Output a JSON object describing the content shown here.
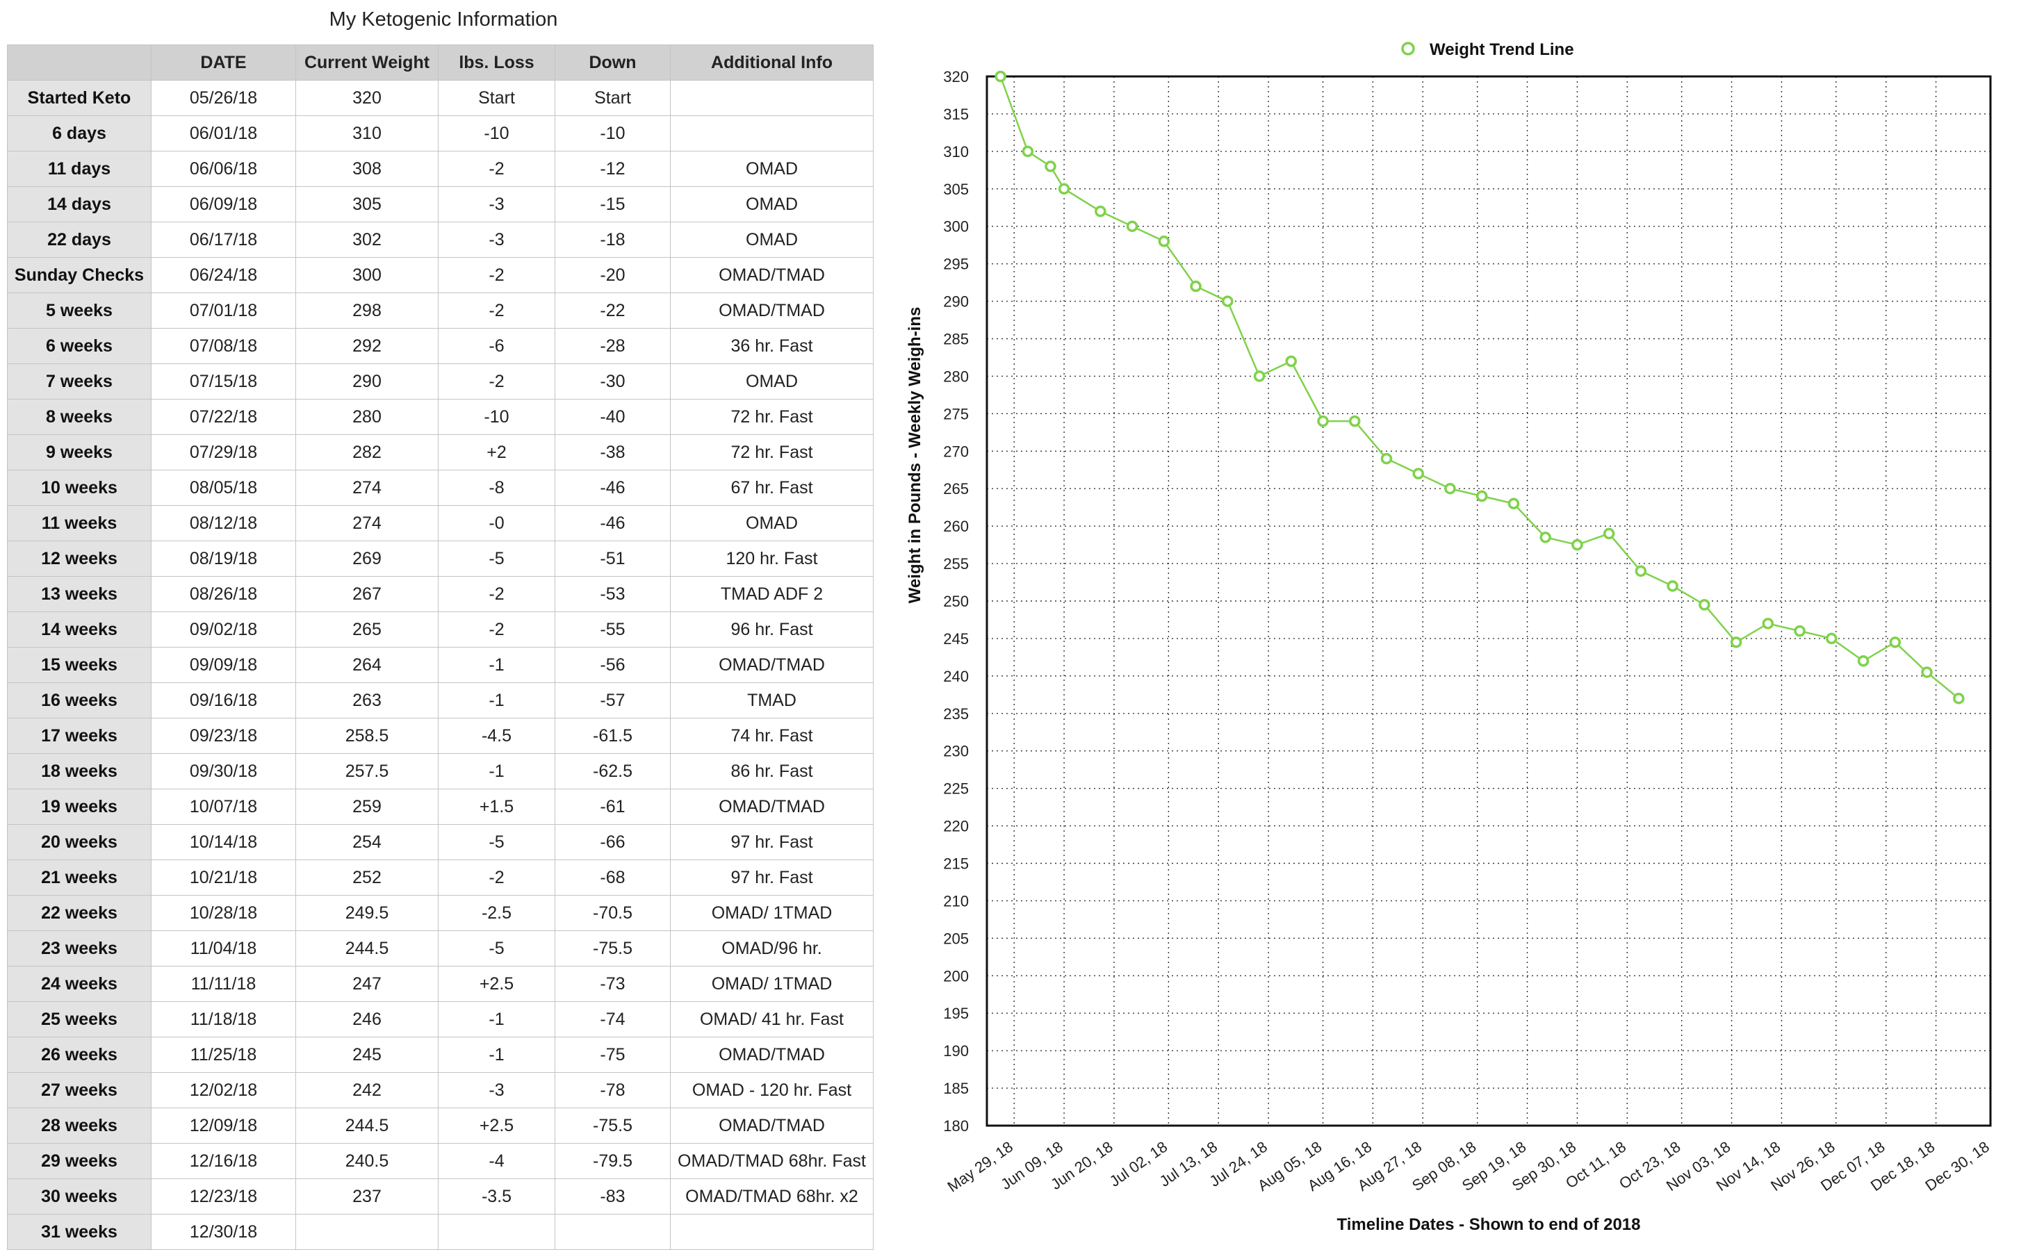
{
  "page": {
    "title": "My Ketogenic Information"
  },
  "table": {
    "headers": [
      "",
      "DATE",
      "Current Weight",
      "lbs. Loss",
      "Down",
      "Additional Info"
    ],
    "rows": [
      {
        "label": "Started Keto",
        "date": "05/26/18",
        "weight": "320",
        "loss": "Start",
        "down": "Start",
        "info": ""
      },
      {
        "label": "6 days",
        "date": "06/01/18",
        "weight": "310",
        "loss": "-10",
        "down": "-10",
        "info": ""
      },
      {
        "label": "11 days",
        "date": "06/06/18",
        "weight": "308",
        "loss": "-2",
        "down": "-12",
        "info": "OMAD"
      },
      {
        "label": "14 days",
        "date": "06/09/18",
        "weight": "305",
        "loss": "-3",
        "down": "-15",
        "info": "OMAD"
      },
      {
        "label": "22 days",
        "date": "06/17/18",
        "weight": "302",
        "loss": "-3",
        "down": "-18",
        "info": "OMAD"
      },
      {
        "label": "Sunday Checks",
        "date": "06/24/18",
        "weight": "300",
        "loss": "-2",
        "down": "-20",
        "info": "OMAD/TMAD"
      },
      {
        "label": "5 weeks",
        "date": "07/01/18",
        "weight": "298",
        "loss": "-2",
        "down": "-22",
        "info": "OMAD/TMAD"
      },
      {
        "label": "6 weeks",
        "date": "07/08/18",
        "weight": "292",
        "loss": "-6",
        "down": "-28",
        "info": "36 hr. Fast"
      },
      {
        "label": "7 weeks",
        "date": "07/15/18",
        "weight": "290",
        "loss": "-2",
        "down": "-30",
        "info": "OMAD"
      },
      {
        "label": "8 weeks",
        "date": "07/22/18",
        "weight": "280",
        "loss": "-10",
        "down": "-40",
        "info": "72 hr. Fast"
      },
      {
        "label": "9 weeks",
        "date": "07/29/18",
        "weight": "282",
        "loss": "+2",
        "down": "-38",
        "info": "72 hr. Fast"
      },
      {
        "label": "10 weeks",
        "date": "08/05/18",
        "weight": "274",
        "loss": "-8",
        "down": "-46",
        "info": "67 hr. Fast"
      },
      {
        "label": "11 weeks",
        "date": "08/12/18",
        "weight": "274",
        "loss": "-0",
        "down": "-46",
        "info": "OMAD"
      },
      {
        "label": "12 weeks",
        "date": "08/19/18",
        "weight": "269",
        "loss": "-5",
        "down": "-51",
        "info": "120 hr. Fast"
      },
      {
        "label": "13 weeks",
        "date": "08/26/18",
        "weight": "267",
        "loss": "-2",
        "down": "-53",
        "info": "TMAD ADF 2"
      },
      {
        "label": "14 weeks",
        "date": "09/02/18",
        "weight": "265",
        "loss": "-2",
        "down": "-55",
        "info": "96 hr. Fast"
      },
      {
        "label": "15 weeks",
        "date": "09/09/18",
        "weight": "264",
        "loss": "-1",
        "down": "-56",
        "info": "OMAD/TMAD"
      },
      {
        "label": "16 weeks",
        "date": "09/16/18",
        "weight": "263",
        "loss": "-1",
        "down": "-57",
        "info": "TMAD"
      },
      {
        "label": "17 weeks",
        "date": "09/23/18",
        "weight": "258.5",
        "loss": "-4.5",
        "down": "-61.5",
        "info": "74 hr. Fast"
      },
      {
        "label": "18 weeks",
        "date": "09/30/18",
        "weight": "257.5",
        "loss": "-1",
        "down": "-62.5",
        "info": "86 hr. Fast"
      },
      {
        "label": "19 weeks",
        "date": "10/07/18",
        "weight": "259",
        "loss": "+1.5",
        "down": "-61",
        "info": "OMAD/TMAD"
      },
      {
        "label": "20 weeks",
        "date": "10/14/18",
        "weight": "254",
        "loss": "-5",
        "down": "-66",
        "info": "97 hr. Fast"
      },
      {
        "label": "21 weeks",
        "date": "10/21/18",
        "weight": "252",
        "loss": "-2",
        "down": "-68",
        "info": "97 hr. Fast"
      },
      {
        "label": "22 weeks",
        "date": "10/28/18",
        "weight": "249.5",
        "loss": "-2.5",
        "down": "-70.5",
        "info": "OMAD/ 1TMAD"
      },
      {
        "label": "23 weeks",
        "date": "11/04/18",
        "weight": "244.5",
        "loss": "-5",
        "down": "-75.5",
        "info": "OMAD/96 hr."
      },
      {
        "label": "24 weeks",
        "date": "11/11/18",
        "weight": "247",
        "loss": "+2.5",
        "down": "-73",
        "info": "OMAD/ 1TMAD"
      },
      {
        "label": "25 weeks",
        "date": "11/18/18",
        "weight": "246",
        "loss": "-1",
        "down": "-74",
        "info": "OMAD/ 41 hr. Fast"
      },
      {
        "label": "26 weeks",
        "date": "11/25/18",
        "weight": "245",
        "loss": "-1",
        "down": "-75",
        "info": "OMAD/TMAD"
      },
      {
        "label": "27 weeks",
        "date": "12/02/18",
        "weight": "242",
        "loss": "-3",
        "down": "-78",
        "info": "OMAD - 120 hr. Fast"
      },
      {
        "label": "28 weeks",
        "date": "12/09/18",
        "weight": "244.5",
        "loss": "+2.5",
        "down": "-75.5",
        "info": "OMAD/TMAD"
      },
      {
        "label": "29 weeks",
        "date": "12/16/18",
        "weight": "240.5",
        "loss": "-4",
        "down": "-79.5",
        "info": "OMAD/TMAD 68hr. Fast"
      },
      {
        "label": "30 weeks",
        "date": "12/23/18",
        "weight": "237",
        "loss": "-3.5",
        "down": "-83",
        "info": "OMAD/TMAD 68hr. x2"
      },
      {
        "label": "31 weeks",
        "date": "12/30/18",
        "weight": "",
        "loss": "",
        "down": "",
        "info": ""
      }
    ]
  },
  "chart_data": {
    "type": "line",
    "legend": "Weight Trend Line",
    "legend_placement": "top-center",
    "xlabel": "Timeline Dates - Shown to end of 2018",
    "ylabel": "Weight in Pounds - Weekly Weigh-ins",
    "ylim": [
      180,
      320
    ],
    "yticks": [
      320,
      315,
      310,
      305,
      300,
      295,
      290,
      285,
      280,
      275,
      270,
      265,
      260,
      255,
      250,
      245,
      240,
      235,
      230,
      225,
      220,
      215,
      210,
      205,
      200,
      195,
      190,
      185,
      180
    ],
    "xlim": [
      "2018-05-23",
      "2018-12-30"
    ],
    "xticks": [
      {
        "date": "2018-05-29",
        "label": "May 29, 18"
      },
      {
        "date": "2018-06-09",
        "label": "Jun 09, 18"
      },
      {
        "date": "2018-06-20",
        "label": "Jun 20, 18"
      },
      {
        "date": "2018-07-02",
        "label": "Jul 02, 18"
      },
      {
        "date": "2018-07-13",
        "label": "Jul 13, 18"
      },
      {
        "date": "2018-07-24",
        "label": "Jul 24, 18"
      },
      {
        "date": "2018-08-05",
        "label": "Aug 05, 18"
      },
      {
        "date": "2018-08-16",
        "label": "Aug 16, 18"
      },
      {
        "date": "2018-08-27",
        "label": "Aug 27, 18"
      },
      {
        "date": "2018-09-08",
        "label": "Sep 08, 18"
      },
      {
        "date": "2018-09-19",
        "label": "Sep 19, 18"
      },
      {
        "date": "2018-09-30",
        "label": "Sep 30, 18"
      },
      {
        "date": "2018-10-11",
        "label": "Oct 11, 18"
      },
      {
        "date": "2018-10-23",
        "label": "Oct 23, 18"
      },
      {
        "date": "2018-11-03",
        "label": "Nov 03, 18"
      },
      {
        "date": "2018-11-14",
        "label": "Nov 14, 18"
      },
      {
        "date": "2018-11-26",
        "label": "Nov 26, 18"
      },
      {
        "date": "2018-12-07",
        "label": "Dec 07, 18"
      },
      {
        "date": "2018-12-18",
        "label": "Dec 18, 18"
      },
      {
        "date": "2018-12-30",
        "label": "Dec 30, 18"
      }
    ],
    "grid": true,
    "series": [
      {
        "name": "Weight Trend Line",
        "color": "#7fd24a",
        "points": [
          {
            "x": "2018-05-26",
            "y": 320
          },
          {
            "x": "2018-06-01",
            "y": 310
          },
          {
            "x": "2018-06-06",
            "y": 308
          },
          {
            "x": "2018-06-09",
            "y": 305
          },
          {
            "x": "2018-06-17",
            "y": 302
          },
          {
            "x": "2018-06-24",
            "y": 300
          },
          {
            "x": "2018-07-01",
            "y": 298
          },
          {
            "x": "2018-07-08",
            "y": 292
          },
          {
            "x": "2018-07-15",
            "y": 290
          },
          {
            "x": "2018-07-22",
            "y": 280
          },
          {
            "x": "2018-07-29",
            "y": 282
          },
          {
            "x": "2018-08-05",
            "y": 274
          },
          {
            "x": "2018-08-12",
            "y": 274
          },
          {
            "x": "2018-08-19",
            "y": 269
          },
          {
            "x": "2018-08-26",
            "y": 267
          },
          {
            "x": "2018-09-02",
            "y": 265
          },
          {
            "x": "2018-09-09",
            "y": 264
          },
          {
            "x": "2018-09-16",
            "y": 263
          },
          {
            "x": "2018-09-23",
            "y": 258.5
          },
          {
            "x": "2018-09-30",
            "y": 257.5
          },
          {
            "x": "2018-10-07",
            "y": 259
          },
          {
            "x": "2018-10-14",
            "y": 254
          },
          {
            "x": "2018-10-21",
            "y": 252
          },
          {
            "x": "2018-10-28",
            "y": 249.5
          },
          {
            "x": "2018-11-04",
            "y": 244.5
          },
          {
            "x": "2018-11-11",
            "y": 247
          },
          {
            "x": "2018-11-18",
            "y": 246
          },
          {
            "x": "2018-11-25",
            "y": 245
          },
          {
            "x": "2018-12-02",
            "y": 242
          },
          {
            "x": "2018-12-09",
            "y": 244.5
          },
          {
            "x": "2018-12-16",
            "y": 240.5
          },
          {
            "x": "2018-12-23",
            "y": 237
          }
        ]
      }
    ]
  }
}
